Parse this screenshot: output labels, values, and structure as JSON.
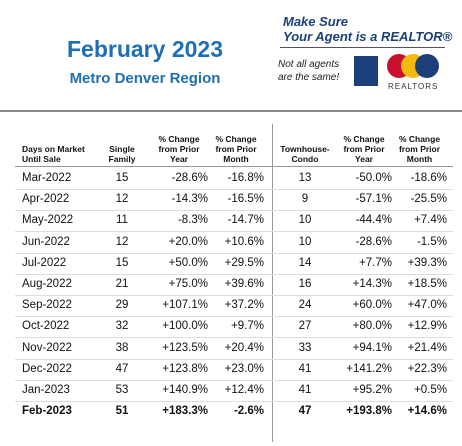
{
  "header": {
    "title": "February 2023",
    "subtitle": "Metro Denver Region",
    "ad": {
      "line1": "Make Sure",
      "line2": "Your Agent is a REALTOR®",
      "tagline1": "Not all agents",
      "tagline2": "are the same!",
      "logo_text": "REALTORS"
    }
  },
  "table": {
    "columns": [
      "Days on Market Until Sale",
      "Single Family",
      "% Change from Prior Year",
      "% Change from Prior Month",
      "Townhouse-Condo",
      "% Change from Prior Year",
      "% Change from Prior Month"
    ],
    "rows": [
      [
        "Mar-2022",
        "15",
        "-28.6%",
        "-16.8%",
        "13",
        "-50.0%",
        "-18.6%"
      ],
      [
        "Apr-2022",
        "12",
        "-14.3%",
        "-16.5%",
        "9",
        "-57.1%",
        "-25.5%"
      ],
      [
        "May-2022",
        "11",
        "-8.3%",
        "-14.7%",
        "10",
        "-44.4%",
        "+7.4%"
      ],
      [
        "Jun-2022",
        "12",
        "+20.0%",
        "+10.6%",
        "10",
        "-28.6%",
        "-1.5%"
      ],
      [
        "Jul-2022",
        "15",
        "+50.0%",
        "+29.5%",
        "14",
        "+7.7%",
        "+39.3%"
      ],
      [
        "Aug-2022",
        "21",
        "+75.0%",
        "+39.6%",
        "16",
        "+14.3%",
        "+18.5%"
      ],
      [
        "Sep-2022",
        "29",
        "+107.1%",
        "+37.2%",
        "24",
        "+60.0%",
        "+47.0%"
      ],
      [
        "Oct-2022",
        "32",
        "+100.0%",
        "+9.7%",
        "27",
        "+80.0%",
        "+12.9%"
      ],
      [
        "Nov-2022",
        "38",
        "+123.5%",
        "+20.4%",
        "33",
        "+94.1%",
        "+21.4%"
      ],
      [
        "Dec-2022",
        "47",
        "+123.8%",
        "+23.0%",
        "41",
        "+141.2%",
        "+22.3%"
      ],
      [
        "Jan-2023",
        "53",
        "+140.9%",
        "+12.4%",
        "41",
        "+95.2%",
        "+0.5%"
      ],
      [
        "Feb-2023",
        "51",
        "+183.3%",
        "-2.6%",
        "47",
        "+193.8%",
        "+14.6%"
      ]
    ]
  }
}
